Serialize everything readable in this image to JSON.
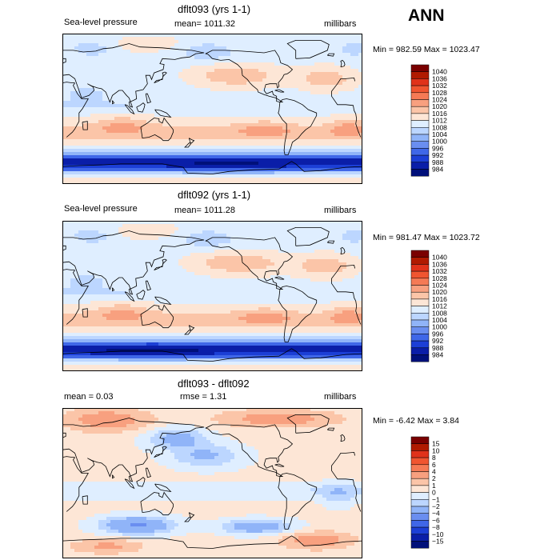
{
  "season": "ANN",
  "units": "millibars",
  "chart_data": [
    {
      "type": "heatmap",
      "title": "dflt093 (yrs 1-1)",
      "field": "Sea-level pressure",
      "stat_text": "mean=  1011.32",
      "units": "millibars",
      "min_max_text": "Min = 982.59 Max = 1023.47",
      "min": 982.59,
      "max": 1023.47,
      "mean": 1011.32,
      "colorbar_levels": [
        "1040",
        "1036",
        "1032",
        "1028",
        "1024",
        "1020",
        "1016",
        "1012",
        "1008",
        "1004",
        "1000",
        "996",
        "992",
        "988",
        "984"
      ]
    },
    {
      "type": "heatmap",
      "title": "dflt092 (yrs 1-1)",
      "field": "Sea-level pressure",
      "stat_text": "mean=  1011.28",
      "units": "millibars",
      "min_max_text": "Min = 981.47 Max = 1023.72",
      "min": 981.47,
      "max": 1023.72,
      "mean": 1011.28,
      "colorbar_levels": [
        "1040",
        "1036",
        "1032",
        "1028",
        "1024",
        "1020",
        "1016",
        "1012",
        "1008",
        "1004",
        "1000",
        "996",
        "992",
        "988",
        "984"
      ]
    },
    {
      "type": "heatmap",
      "title": "dflt093 - dflt092",
      "mean_text": "mean =    0.03",
      "rmse_text": "rmse =    1.31",
      "units": "millibars",
      "min_max_text": "Min =   -6.42 Max =    3.84",
      "min": -6.42,
      "max": 3.84,
      "mean": 0.03,
      "rmse": 1.31,
      "colorbar_levels": [
        "15",
        "10",
        "8",
        "6",
        "4",
        "2",
        "1",
        "0",
        "−1",
        "−2",
        "−4",
        "−6",
        "−8",
        "−10",
        "−15"
      ]
    }
  ],
  "colors": {
    "scale_top_to_bottom": [
      "#7a0000",
      "#b01a00",
      "#e0321a",
      "#f05530",
      "#f57a55",
      "#f8a07f",
      "#fbc5a8",
      "#fde6d6",
      "#dfeeff",
      "#bcd6ff",
      "#90b4f8",
      "#6a8ef0",
      "#3f67e8",
      "#1c3fd6",
      "#0a1ea8",
      "#00107a"
    ]
  }
}
